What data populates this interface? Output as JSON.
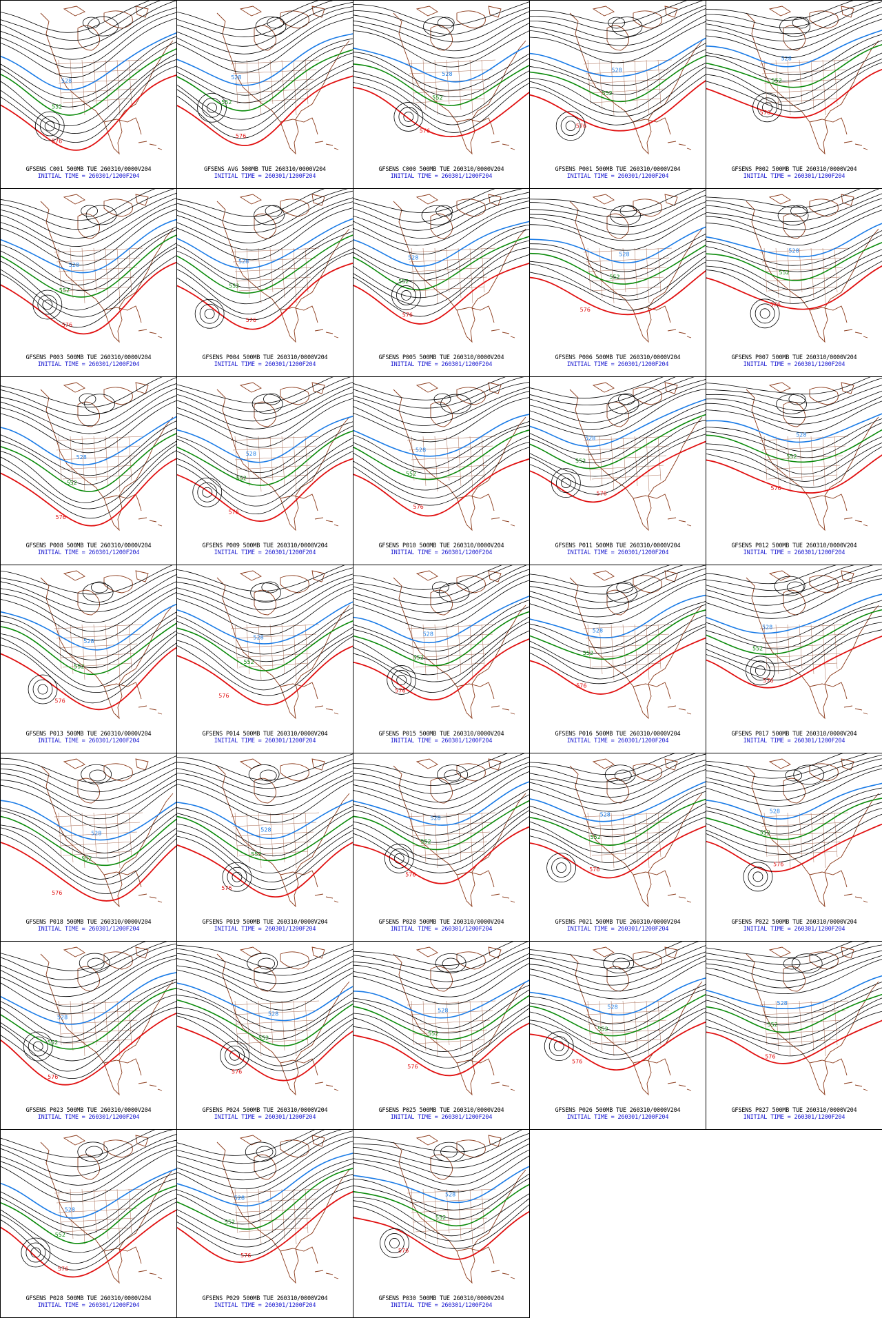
{
  "map_data": {
    "level": "500MB",
    "valid_time": "TUE 260310/0000V204",
    "initial_time_label": "INITIAL TIME = 260301/1200F204",
    "contour_labels": {
      "cold": "528",
      "mid": "552",
      "warm": "576"
    },
    "colors": {
      "cold": "#1a7be6",
      "mid": "#0a8a0a",
      "warm": "#e01010",
      "other": "#000000",
      "coast": "#8b3a1a",
      "caption_line2": "#1a1ad0"
    },
    "panels": [
      {
        "title": "GFSENS C001 500MB TUE 260310/0000V204",
        "initial": "INITIAL TIME = 260301/1200F204"
      },
      {
        "title": "GFSENS AVG 500MB TUE 260310/0000V204",
        "initial": "INITIAL TIME = 260301/1200F204"
      },
      {
        "title": "GFSENS C000 500MB TUE 260310/0000V204",
        "initial": "INITIAL TIME = 260301/1200F204"
      },
      {
        "title": "GFSENS P001 500MB TUE 260310/0000V204",
        "initial": "INITIAL TIME = 260301/1200F204"
      },
      {
        "title": "GFSENS P002 500MB TUE 260310/0000V204",
        "initial": "INITIAL TIME = 260301/1200F204"
      },
      {
        "title": "GFSENS P003 500MB TUE 260310/0000V204",
        "initial": "INITIAL TIME = 260301/1200F204"
      },
      {
        "title": "GFSENS P004 500MB TUE 260310/0000V204",
        "initial": "INITIAL TIME = 260301/1200F204"
      },
      {
        "title": "GFSENS P005 500MB TUE 260310/0000V204",
        "initial": "INITIAL TIME = 260301/1200F204"
      },
      {
        "title": "GFSENS P006 500MB TUE 260310/0000V204",
        "initial": "INITIAL TIME = 260301/1200F204"
      },
      {
        "title": "GFSENS P007 500MB TUE 260310/0000V204",
        "initial": "INITIAL TIME = 260301/1200F204"
      },
      {
        "title": "GFSENS P008 500MB TUE 260310/0000V204",
        "initial": "INITIAL TIME = 260301/1200F204"
      },
      {
        "title": "GFSENS P009 500MB TUE 260310/0000V204",
        "initial": "INITIAL TIME = 260301/1200F204"
      },
      {
        "title": "GFSENS P010 500MB TUE 260310/0000V204",
        "initial": "INITIAL TIME = 260301/1200F204"
      },
      {
        "title": "GFSENS P011 500MB TUE 260310/0000V204",
        "initial": "INITIAL TIME = 260301/1200F204"
      },
      {
        "title": "GFSENS P012 500MB TUE 260310/0000V204",
        "initial": "INITIAL TIME = 260301/1200F204"
      },
      {
        "title": "GFSENS P013 500MB TUE 260310/0000V204",
        "initial": "INITIAL TIME = 260301/1200F204"
      },
      {
        "title": "GFSENS P014 500MB TUE 260310/0000V204",
        "initial": "INITIAL TIME = 260301/1200F204"
      },
      {
        "title": "GFSENS P015 500MB TUE 260310/0000V204",
        "initial": "INITIAL TIME = 260301/1200F204"
      },
      {
        "title": "GFSENS P016 500MB TUE 260310/0000V204",
        "initial": "INITIAL TIME = 260301/1200F204"
      },
      {
        "title": "GFSENS P017 500MB TUE 260310/0000V204",
        "initial": "INITIAL TIME = 260301/1200F204"
      },
      {
        "title": "GFSENS P018 500MB TUE 260310/0000V204",
        "initial": "INITIAL TIME = 260301/1200F204"
      },
      {
        "title": "GFSENS P019 500MB TUE 260310/0000V204",
        "initial": "INITIAL TIME = 260301/1200F204"
      },
      {
        "title": "GFSENS P020 500MB TUE 260310/0000V204",
        "initial": "INITIAL TIME = 260301/1200F204"
      },
      {
        "title": "GFSENS P021 500MB TUE 260310/0000V204",
        "initial": "INITIAL TIME = 260301/1200F204"
      },
      {
        "title": "GFSENS P022 500MB TUE 260310/0000V204",
        "initial": "INITIAL TIME = 260301/1200F204"
      },
      {
        "title": "GFSENS P023 500MB TUE 260310/0000V204",
        "initial": "INITIAL TIME = 260301/1200F204"
      },
      {
        "title": "GFSENS P024 500MB TUE 260310/0000V204",
        "initial": "INITIAL TIME = 260301/1200F204"
      },
      {
        "title": "GFSENS P025 500MB TUE 260310/0000V204",
        "initial": "INITIAL TIME = 260301/1200F204"
      },
      {
        "title": "GFSENS P026 500MB TUE 260310/0000V204",
        "initial": "INITIAL TIME = 260301/1200F204"
      },
      {
        "title": "GFSENS P027 500MB TUE 260310/0000V204",
        "initial": "INITIAL TIME = 260301/1200F204"
      },
      {
        "title": "GFSENS P028 500MB TUE 260310/0000V204",
        "initial": "INITIAL TIME = 260301/1200F204"
      },
      {
        "title": "GFSENS P029 500MB TUE 260310/0000V204",
        "initial": "INITIAL TIME = 260301/1200F204"
      },
      {
        "title": "GFSENS P030 500MB TUE 260310/0000V204",
        "initial": "INITIAL TIME = 260301/1200F204"
      }
    ]
  }
}
